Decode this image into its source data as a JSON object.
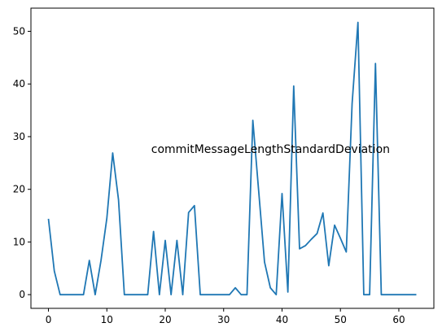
{
  "chart_data": {
    "type": "line",
    "title": "",
    "xlabel": "",
    "ylabel": "",
    "annotation": "commitMessageLengthStandardDeviation",
    "xlim": [
      -3,
      66
    ],
    "ylim": [
      -2.6,
      54.4
    ],
    "xticks": [
      0,
      10,
      20,
      30,
      40,
      50,
      60
    ],
    "yticks": [
      0,
      10,
      20,
      30,
      40,
      50
    ],
    "grid": false,
    "legend": "none",
    "line_color": "#1f77b4",
    "series": [
      {
        "x": [
          0,
          1,
          2,
          3,
          4,
          5,
          6,
          7,
          8,
          9,
          10,
          11,
          12,
          13,
          14,
          15,
          16,
          17,
          18,
          19,
          20,
          21,
          22,
          23,
          24,
          25,
          26,
          27,
          28,
          29,
          30,
          31,
          32,
          33,
          34,
          35,
          36,
          37,
          38,
          39,
          40,
          41,
          42,
          43,
          44,
          45,
          46,
          47,
          48,
          49,
          50,
          51,
          52,
          53,
          54,
          55,
          56,
          57,
          58,
          59,
          60,
          61,
          62,
          63
        ],
        "y": [
          14.4,
          4.5,
          0,
          0,
          0,
          0,
          0,
          6.5,
          0,
          6.5,
          14.5,
          26.9,
          18,
          0,
          0,
          0,
          0,
          0,
          12,
          0,
          10.3,
          0,
          10.3,
          0,
          15.6,
          16.9,
          0,
          0,
          0,
          0,
          0,
          0,
          1.3,
          0,
          0,
          33.1,
          19.7,
          6.2,
          1.3,
          0,
          19.2,
          0.5,
          39.6,
          8.7,
          9.3,
          10.5,
          11.6,
          15.5,
          5.5,
          13.2,
          10.7,
          8.1,
          36.3,
          51.7,
          0,
          0,
          43.9,
          0,
          0,
          0,
          0,
          0,
          0,
          0
        ]
      }
    ]
  }
}
